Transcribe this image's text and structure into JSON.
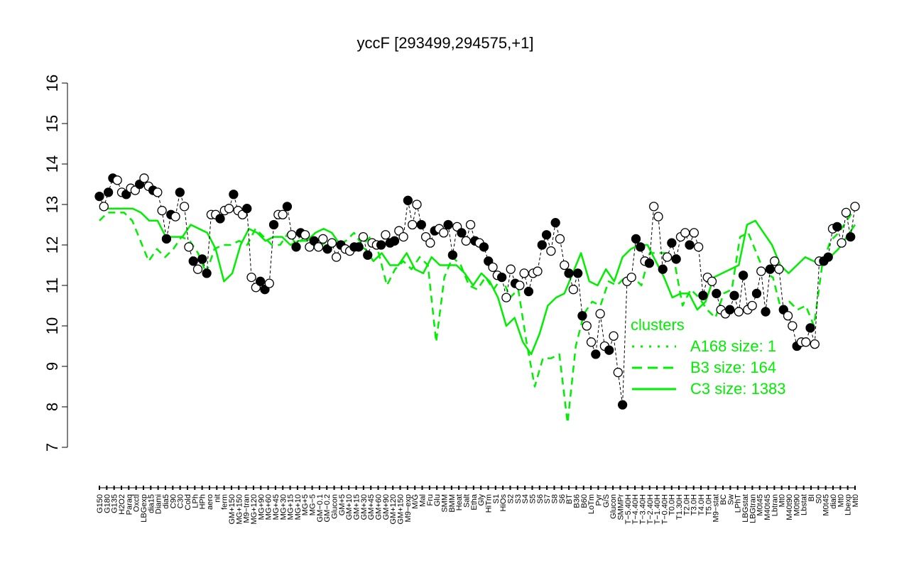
{
  "chart_data": {
    "type": "line",
    "title": "yccF [293499,294575,+1]",
    "xlabel": "",
    "ylabel": "",
    "ylim": [
      7,
      16
    ],
    "yticks": [
      7,
      8,
      9,
      10,
      11,
      12,
      13,
      14,
      15,
      16
    ],
    "x_tick_labels": [
      "G150",
      "G180",
      "G135",
      "H2O2",
      "Paraq",
      "Oxctl",
      "LBGexp",
      "dia15",
      "Diami",
      "dia5",
      "C90",
      "C30",
      "Cold",
      "LPh",
      "HPh",
      "aero",
      "nit",
      "ferm",
      "GM+150",
      "MG+150",
      "M9−tran",
      "MG+120",
      "MG+90",
      "MG+60",
      "MG+45",
      "MG+30",
      "MG+15",
      "MG+10",
      "MG+5",
      "MG−5",
      "GM−0.1",
      "GM−0.2",
      "Glucon",
      "GM+5",
      "GM+10",
      "GM+15",
      "GM+30",
      "GM+45",
      "GM+60",
      "GM+90",
      "GM+120",
      "GM+150",
      "M9−exp",
      "M/G",
      "Mal",
      "Fru",
      "Glu",
      "SMM",
      "BMM",
      "Heat",
      "Salt",
      "Etha",
      "Gly",
      "HiTm",
      "S1",
      "HiOs",
      "S2",
      "S3",
      "S4",
      "S5",
      "S6",
      "S7",
      "S8",
      "S6",
      "BT",
      "B36",
      "B60",
      "LoTm",
      "Pyr",
      "G/S",
      "Glucon",
      "SMMPr",
      "T−5.40H",
      "T−4.40H",
      "T−3.40H",
      "T−2.40H",
      "T−1.40H",
      "T−0.40H",
      "T0.0H",
      "T1.30H",
      "T2.0H",
      "T3.0H",
      "T4.0H",
      "T5.0H",
      "M9−stat",
      "BC",
      "Sw",
      "LPhT",
      "LBGstat",
      "LBGtran",
      "M0t45",
      "M40t45",
      "Lbtran",
      "Mt0",
      "M40t90",
      "M0t90",
      "Lbstat",
      "BI",
      "S0",
      "M0t45",
      "dia0",
      "Mt0",
      "Lbexp",
      "Mt0"
    ],
    "legend": {
      "title": "clusters",
      "placement": "right",
      "entries": [
        {
          "label": "A168 size: 1",
          "style": "dotted"
        },
        {
          "label": "B3 size: 164",
          "style": "dashed"
        },
        {
          "label": "C3 size: 1383",
          "style": "solid"
        }
      ]
    },
    "series": [
      {
        "name": "yccF",
        "values": [
          13.2,
          12.95,
          13.3,
          13.65,
          13.6,
          13.3,
          13.25,
          13.4,
          13.35,
          13.5,
          13.65,
          13.45,
          13.35,
          13.3,
          12.85,
          12.15,
          12.75,
          12.7,
          13.3,
          12.95,
          11.95,
          11.6,
          11.4,
          11.65,
          11.3,
          12.75,
          12.75,
          12.65,
          12.85,
          12.9,
          13.25,
          12.85,
          12.75,
          12.9,
          11.2,
          10.95,
          11.1,
          10.9,
          11.05,
          12.5,
          12.75,
          12.75,
          12.95,
          12.25,
          11.95,
          12.3,
          12.25,
          11.95,
          12.1,
          11.95,
          12.15,
          11.9,
          12.05,
          11.7,
          12.0,
          11.9,
          11.85,
          11.95,
          11.95,
          12.2,
          11.75,
          12.05,
          12.0,
          12.0,
          12.25,
          12.05,
          12.1,
          12.35,
          12.2,
          13.1,
          12.5,
          13.0,
          12.5,
          12.2,
          12.05,
          12.35,
          12.4,
          12.3,
          12.5,
          11.75,
          12.45,
          12.3,
          12.1,
          12.5,
          12.1,
          12.05,
          11.95,
          11.6,
          11.45,
          11.25,
          11.2,
          10.7,
          11.4,
          11.05,
          11.0,
          11.3,
          10.85,
          11.3,
          11.35,
          12.0,
          12.25,
          11.85,
          12.55,
          12.15,
          11.5,
          11.3,
          10.9,
          11.3,
          10.25,
          10.0,
          9.6,
          9.3,
          10.3,
          9.5,
          9.4,
          9.75,
          8.85,
          8.05,
          11.1,
          11.2,
          12.15,
          11.95,
          11.6,
          11.55,
          12.95,
          12.7,
          11.4,
          11.7,
          12.05,
          11.65,
          12.2,
          12.3,
          12.0,
          12.3,
          11.95,
          10.75,
          11.2,
          11.1,
          10.8,
          10.4,
          10.3,
          10.4,
          10.75,
          10.35,
          11.25,
          10.4,
          10.5,
          10.8,
          11.35,
          10.35,
          11.4,
          11.6,
          11.4,
          10.4,
          10.25,
          10.0,
          9.5,
          9.6,
          9.6,
          9.95,
          9.55,
          11.6,
          11.6,
          11.7,
          12.4,
          12.45,
          12.05,
          12.8,
          12.2,
          12.95
        ]
      },
      {
        "name": "B3",
        "values": [
          12.6,
          12.8,
          12.8,
          12.8,
          12.6,
          12.1,
          11.6,
          11.9,
          11.7,
          11.9,
          12.2,
          12.1,
          11.8,
          11.3,
          11.9,
          12.0,
          12.0,
          12.1,
          12.0,
          12.4,
          12.2,
          12.0,
          12.0,
          12.3,
          12.0,
          12.2,
          12.2,
          12.0,
          12.1,
          12.0,
          12.1,
          12.3,
          12.0,
          12.2,
          11.8,
          11.0,
          11.4,
          11.6,
          11.4,
          11.7,
          11.5,
          9.6,
          11.2,
          11.7,
          11.5,
          11.0,
          10.9,
          11.2,
          10.9,
          11.2,
          10.7,
          10.9,
          9.6,
          8.5,
          9.2,
          9.2,
          9.3,
          7.6,
          9.5,
          10.3,
          10.6,
          10.5,
          11.1,
          11.0,
          11.2,
          11.2,
          11.0,
          11.8,
          11.8,
          11.8,
          11.6,
          10.5,
          10.9,
          10.7,
          10.4,
          10.2,
          10.8,
          10.9,
          12.2,
          12.3,
          11.8,
          11.3,
          11.2,
          10.4,
          10.6,
          10.4,
          10.5,
          10.0,
          11.5,
          12.1,
          12.3,
          12.6,
          12.9
        ]
      },
      {
        "name": "C3",
        "values": [
          12.9,
          12.9,
          12.9,
          12.9,
          12.9,
          12.8,
          12.6,
          12.6,
          12.2,
          12.2,
          12.2,
          12.5,
          12.4,
          12.3,
          11.9,
          11.1,
          11.3,
          12.0,
          12.4,
          12.3,
          12.1,
          12.2,
          12.2,
          12.0,
          12.1,
          12.1,
          12.3,
          12.4,
          12.3,
          12.0,
          11.9,
          12.0,
          11.9,
          11.6,
          11.8,
          11.5,
          11.5,
          11.8,
          11.4,
          11.3,
          11.7,
          11.5,
          11.5,
          11.5,
          11.3,
          11.0,
          11.3,
          11.1,
          10.7,
          10.0,
          10.2,
          9.6,
          9.3,
          9.8,
          10.5,
          10.7,
          10.8,
          11.3,
          11.8,
          11.1,
          11.0,
          11.4,
          11.1,
          11.7,
          11.9,
          12.0,
          12.0,
          11.6,
          11.2,
          10.7,
          10.8,
          10.8,
          10.4,
          10.6,
          11.2,
          11.3,
          11.4,
          11.5,
          12.5,
          12.6,
          12.3,
          12.0,
          11.5,
          11.3,
          11.5,
          11.7,
          11.6,
          11.5,
          11.7,
          11.9,
          12.2,
          12.5
        ]
      }
    ]
  }
}
